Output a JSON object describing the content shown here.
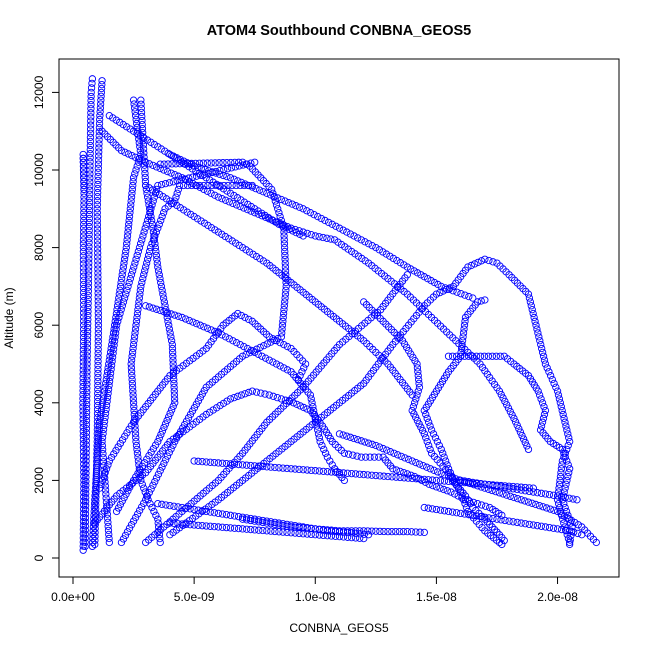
{
  "chart_data": {
    "type": "scatter",
    "title": "ATOM4 Southbound CONBNA_GEOS5",
    "xlabel": "CONBNA_GEOS5",
    "ylabel": "Altitude (m)",
    "xlim": [
      0,
      2.2e-08
    ],
    "ylim": [
      0,
      12500
    ],
    "x_ticks": [
      {
        "value": 0,
        "label": "0.0e+00"
      },
      {
        "value": 5e-09,
        "label": "5.0e-09"
      },
      {
        "value": 1e-08,
        "label": "1.0e-08"
      },
      {
        "value": 1.5e-08,
        "label": "1.5e-08"
      },
      {
        "value": 2e-08,
        "label": "2.0e-08"
      }
    ],
    "y_ticks": [
      {
        "value": 0,
        "label": "0"
      },
      {
        "value": 2000,
        "label": "2000"
      },
      {
        "value": 4000,
        "label": "4000"
      },
      {
        "value": 6000,
        "label": "6000"
      },
      {
        "value": 8000,
        "label": "8000"
      },
      {
        "value": 10000,
        "label": "10000"
      },
      {
        "value": 12000,
        "label": "12000"
      }
    ],
    "marker": "open-circle",
    "point_color": "#0000ff",
    "grid": false,
    "series": [
      {
        "x": [
          4.2e-10,
          4.5e-10,
          4.1e-10,
          4.4e-10,
          4.3e-10,
          4.6e-10,
          4.2e-10,
          4.5e-10
        ],
        "y": [
          200,
          2000,
          4000,
          6000,
          8000,
          9600,
          10400,
          9500
        ]
      },
      {
        "x": [
          5e-10,
          5.4e-10,
          5.8e-10,
          6.5e-10,
          7e-10,
          7.5e-10,
          8e-10
        ],
        "y": [
          300,
          2500,
          5000,
          7500,
          10000,
          12000,
          12350
        ]
      },
      {
        "x": [
          9e-10,
          1e-09,
          1.05e-09,
          1e-09,
          1.1e-09,
          1.2e-09
        ],
        "y": [
          350,
          3000,
          6000,
          9000,
          11300,
          12300
        ]
      },
      {
        "x": [
          8e-10,
          9e-10,
          1.1e-09,
          1.6e-09,
          2.2e-09,
          2.5e-09,
          2.8e-09,
          2.5e-09
        ],
        "y": [
          300,
          1500,
          3500,
          5500,
          8000,
          9800,
          10400,
          11800
        ]
      },
      {
        "x": [
          1.5e-09,
          1.2e-09,
          1.8e-09,
          3.5e-09,
          7.5e-09
        ],
        "y": [
          400,
          3000,
          6000,
          9600,
          10200
        ]
      },
      {
        "x": [
          2e-09,
          3e-09,
          4.2e-09,
          5.5e-09,
          7e-09,
          8.6e-09,
          8.8e-09,
          8.7e-09,
          8.2e-09,
          7.3e-09,
          7e-09,
          3.6e-09
        ],
        "y": [
          400,
          1500,
          3000,
          4400,
          5200,
          5700,
          7000,
          8500,
          9500,
          10100,
          10200,
          10150
        ]
      },
      {
        "x": [
          3.6e-09,
          3.5e-09,
          3.1e-09,
          2.8e-09,
          2.6e-09,
          2.5e-09,
          2.4e-09,
          2.6e-09,
          2.8e-09,
          3.2e-09,
          3.5e-09,
          3.8e-09,
          4.2e-09,
          4.4e-09,
          7.4e-09
        ],
        "y": [
          400,
          1000,
          1500,
          2000,
          3000,
          4000,
          5000,
          6000,
          7000,
          8000,
          8500,
          9000,
          9200,
          9600,
          9600
        ]
      },
      {
        "x": [
          3e-09,
          4.5e-09,
          6e-09,
          7e-09,
          8e-09,
          9.5e-09,
          1.1e-08,
          1.27e-08,
          1.38e-08
        ],
        "y": [
          400,
          1200,
          2000,
          2700,
          3500,
          4400,
          5500,
          6400,
          7300
        ]
      },
      {
        "x": [
          4e-09,
          6e-09,
          8e-09,
          1e-08,
          1.2e-08,
          1.32e-08,
          1.45e-08,
          1.5e-08,
          1.57e-08,
          1.63e-08,
          1.7e-08,
          1.75e-08,
          1.8e-08,
          1.88e-08,
          1.95e-08,
          2e-08,
          2.05e-08,
          2.02e-08,
          2e-08,
          2.03e-08,
          2.05e-08
        ],
        "y": [
          600,
          1500,
          2500,
          3500,
          4500,
          5500,
          6500,
          6800,
          7000,
          7500,
          7700,
          7600,
          7300,
          6800,
          5000,
          4300,
          3000,
          2500,
          1500,
          800,
          400
        ]
      },
      {
        "x": [
          1.8e-09,
          2.5e-09,
          3.5e-09,
          4.2e-09,
          4.1e-09,
          3.8e-09,
          3.5e-09,
          3.3e-09,
          3e-09,
          2.8e-09
        ],
        "y": [
          1200,
          2000,
          3000,
          4000,
          5500,
          6500,
          7500,
          8500,
          9600,
          11800
        ]
      },
      {
        "x": [
          1.1e-09,
          1.5e-09,
          2.5e-09,
          4e-09,
          5.5e-09,
          6.2e-09,
          6.8e-09,
          7.4e-09,
          8.1e-09,
          9e-09,
          9.6e-09,
          9.3e-09
        ],
        "y": [
          1800,
          2500,
          3500,
          4700,
          5400,
          6000,
          6300,
          6100,
          5700,
          5400,
          5000,
          4600
        ]
      },
      {
        "x": [
          9e-10,
          1.8e-09,
          3e-09,
          4e-09,
          5.5e-09,
          6.5e-09,
          7.4e-09,
          8.1e-09,
          9.1e-09,
          9.8e-09,
          1.03e-08,
          1.07e-08,
          1.12e-08,
          1.19e-08,
          1.28e-08,
          1.32e-08,
          1.41e-08,
          1.47e-08,
          1.56e-08,
          1.62e-08,
          1.72e-08,
          1.77e-08
        ],
        "y": [
          900,
          1600,
          2200,
          3000,
          3700,
          4100,
          4300,
          4200,
          4000,
          3800,
          3400,
          3000,
          2700,
          2600,
          2600,
          2300,
          2100,
          1900,
          1700,
          1500,
          1300,
          1100
        ]
      },
      {
        "x": [
          3e-09,
          4.5e-09,
          6e-09,
          7.5e-09,
          9e-09,
          9.8e-09,
          1e-08,
          1.02e-08,
          1.05e-08,
          1.08e-08,
          1.12e-08
        ],
        "y": [
          6500,
          6200,
          5800,
          5300,
          4800,
          4200,
          3600,
          3000,
          2600,
          2300,
          2000
        ]
      },
      {
        "x": [
          1.2e-09,
          2e-09,
          3e-09,
          4.5e-09,
          6e-09,
          7.5e-09,
          9e-09,
          1e-08,
          1.08e-08,
          1.15e-08,
          1.22e-08,
          1.3e-08,
          1.38e-08,
          1.48e-08,
          1.58e-08,
          1.68e-08,
          1.76e-08,
          1.82e-08,
          1.88e-08
        ],
        "y": [
          11000,
          10500,
          10200,
          9800,
          9300,
          8900,
          8500,
          8300,
          8200,
          7900,
          7600,
          7200,
          6800,
          6200,
          5600,
          5000,
          4300,
          3600,
          2800
        ]
      },
      {
        "x": [
          3e-09,
          4e-09,
          5e-09,
          6e-09,
          7e-09,
          8e-09,
          9e-09,
          1e-08,
          1.1e-08,
          1.2e-08,
          1.3e-08,
          1.35e-08,
          1.4e-08
        ],
        "y": [
          9600,
          9200,
          8800,
          8400,
          8000,
          7600,
          7100,
          6600,
          6100,
          5600,
          5000,
          4600,
          4200
        ]
      },
      {
        "x": [
          4e-09,
          5e-09,
          6.5e-09,
          8e-09,
          9.5e-09,
          1.1e-08,
          1.25e-08,
          1.38e-08,
          1.52e-08,
          1.65e-08
        ],
        "y": [
          10400,
          10100,
          9800,
          9400,
          9000,
          8500,
          8000,
          7500,
          7000,
          6700
        ]
      },
      {
        "x": [
          1.5e-09,
          2.5e-09,
          3.5e-09,
          4.5e-09,
          5.5e-09,
          6.5e-09,
          7.5e-09,
          8.5e-09,
          9.5e-09
        ],
        "y": [
          11400,
          11000,
          10600,
          10200,
          9800,
          9400,
          9000,
          8600,
          8300
        ]
      },
      {
        "x": [
          1.6e-08,
          1.62e-08,
          1.67e-08,
          1.7e-08
        ],
        "y": [
          5200,
          6200,
          6600,
          6650
        ]
      },
      {
        "x": [
          1.55e-08,
          1.6e-08,
          1.78e-08,
          1.82e-08,
          1.88e-08,
          1.92e-08,
          1.95e-08,
          1.93e-08,
          1.97e-08,
          2.02e-08,
          2.05e-08,
          2.02e-08,
          2.06e-08,
          2.05e-08
        ],
        "y": [
          5200,
          5200,
          5200,
          5000,
          4700,
          4300,
          3800,
          3300,
          3000,
          2800,
          2300,
          1500,
          800,
          350
        ]
      },
      {
        "x": [
          1.6e-08,
          1.55e-08,
          1.5e-08,
          1.45e-08,
          1.48e-08,
          1.52e-08,
          1.55e-08,
          1.58e-08,
          1.62e-08,
          1.65e-08,
          1.7e-08,
          1.73e-08,
          1.76e-08,
          1.78e-08,
          1.77e-08
        ],
        "y": [
          5200,
          4800,
          4300,
          3800,
          3300,
          2800,
          2300,
          1900,
          1600,
          1300,
          1000,
          800,
          600,
          450,
          350
        ]
      },
      {
        "x": [
          1.2e-08,
          1.28e-08,
          1.36e-08,
          1.42e-08,
          1.43e-08,
          1.4e-08,
          1.45e-08,
          1.48e-08,
          1.55e-08,
          1.6e-08,
          1.63e-08,
          1.7e-08,
          1.76e-08
        ],
        "y": [
          6600,
          6100,
          5600,
          5000,
          4400,
          3800,
          3200,
          2700,
          2200,
          1700,
          1200,
          700,
          400
        ]
      },
      {
        "x": [
          7e-09,
          8e-09,
          9e-09,
          1e-08,
          1.1e-08,
          1.2e-08,
          1.3e-08,
          1.38e-08,
          1.45e-08
        ],
        "y": [
          1000,
          900,
          800,
          750,
          700,
          700,
          680,
          680,
          660
        ]
      },
      {
        "x": [
          3.5e-09,
          4.5e-09,
          5.5e-09,
          6.5e-09,
          7.5e-09,
          8.5e-09,
          9.5e-09,
          1.05e-08,
          1.15e-08,
          1.22e-08
        ],
        "y": [
          1400,
          1300,
          1200,
          1100,
          1000,
          900,
          800,
          700,
          650,
          600
        ]
      },
      {
        "x": [
          4e-09,
          5e-09,
          6e-09,
          7e-09,
          8e-09,
          9e-09,
          1e-08,
          1.1e-08,
          1.2e-08
        ],
        "y": [
          900,
          850,
          800,
          750,
          700,
          650,
          600,
          550,
          500
        ]
      },
      {
        "x": [
          1.1e-08,
          1.25e-08,
          1.4e-08,
          1.55e-08,
          1.7e-08,
          1.85e-08,
          2e-08,
          2.1e-08,
          2.16e-08
        ],
        "y": [
          3200,
          2900,
          2500,
          2100,
          1800,
          1500,
          1200,
          800,
          400
        ]
      },
      {
        "x": [
          1.45e-08,
          1.55e-08,
          1.65e-08,
          1.75e-08,
          1.85e-08,
          1.95e-08,
          2.05e-08,
          2.1e-08
        ],
        "y": [
          1300,
          1200,
          1100,
          1000,
          900,
          800,
          700,
          600
        ]
      },
      {
        "x": [
          1.6e-08,
          1.7e-08,
          1.8e-08,
          1.9e-08,
          2e-08,
          2.08e-08
        ],
        "y": [
          2000,
          1900,
          1800,
          1700,
          1600,
          1500
        ]
      },
      {
        "x": [
          5e-09,
          7e-09,
          9e-09,
          1.1e-08,
          1.3e-08,
          1.5e-08,
          1.7e-08,
          1.9e-08
        ],
        "y": [
          2500,
          2400,
          2300,
          2200,
          2100,
          2000,
          1900,
          1800
        ]
      }
    ]
  }
}
